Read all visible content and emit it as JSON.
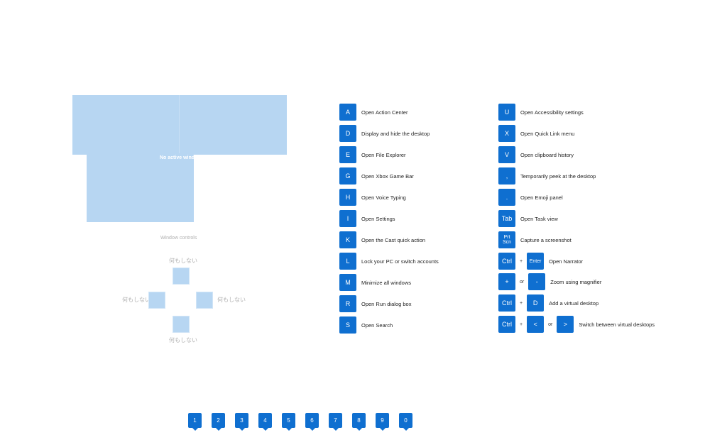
{
  "preview": {
    "no_active_window": "No active wind",
    "window_controls": "Window controls"
  },
  "dpad": {
    "up": "何もしない",
    "left": "何もしない",
    "right": "何もしない",
    "down": "何もしない"
  },
  "shortcuts_left": [
    {
      "key": "A",
      "desc": "Open Action Center"
    },
    {
      "key": "D",
      "desc": "Display and hide the desktop"
    },
    {
      "key": "E",
      "desc": "Open File Explorer"
    },
    {
      "key": "G",
      "desc": "Open Xbox Game Bar"
    },
    {
      "key": "H",
      "desc": "Open Voice Typing"
    },
    {
      "key": "I",
      "desc": "Open Settings"
    },
    {
      "key": "K",
      "desc": "Open the Cast quick action"
    },
    {
      "key": "L",
      "desc": "Lock your PC or switch accounts"
    },
    {
      "key": "M",
      "desc": "Minimize all windows"
    },
    {
      "key": "R",
      "desc": "Open Run dialog box"
    },
    {
      "key": "S",
      "desc": "Open Search"
    }
  ],
  "shortcuts_right": [
    {
      "key": "U",
      "desc": "Open Accessibility settings"
    },
    {
      "key": "X",
      "desc": "Open Quick Link menu"
    },
    {
      "key": "V",
      "desc": "Open clipboard history"
    },
    {
      "key": ",",
      "desc": "Temporarily peek at the desktop"
    },
    {
      "key": ".",
      "desc": "Open Emoji panel"
    },
    {
      "key": "Tab",
      "desc": "Open Task view"
    },
    {
      "key": "Prt Scn",
      "key_line1": "Prt",
      "key_line2": "Scn",
      "desc": "Capture a screenshot"
    }
  ],
  "combos": {
    "narrator": {
      "k1": "Ctrl",
      "plus": "+",
      "k2": "Enter",
      "desc": "Open Narrator"
    },
    "magnifier": {
      "k1": "+",
      "or": "or",
      "k2": "-",
      "desc": "Zoom using magnifier"
    },
    "virtual_desktop": {
      "k1": "Ctrl",
      "plus": "+",
      "k2": "D",
      "desc": "Add a virtual desktop"
    },
    "switch_desktop": {
      "k1": "Ctrl",
      "plus": "+",
      "k2": "<",
      "or": "or",
      "k3": ">",
      "desc": "Switch between virtual desktops"
    }
  },
  "numbers": [
    "1",
    "2",
    "3",
    "4",
    "5",
    "6",
    "7",
    "8",
    "9",
    "0"
  ],
  "colors": {
    "accent": "#0f6fd0",
    "preview_fill": "#b7d6f2"
  }
}
